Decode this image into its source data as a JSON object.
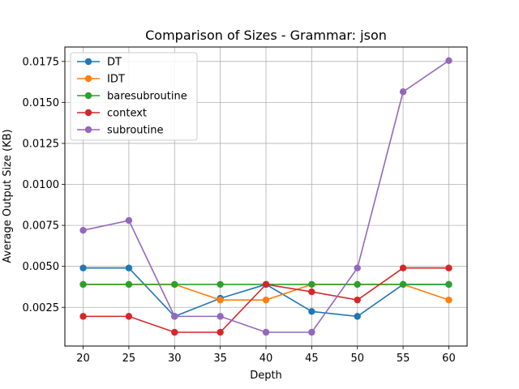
{
  "chart_data": {
    "type": "line",
    "title": "Comparison of Sizes - Grammar: json",
    "xlabel": "Depth",
    "ylabel": "Average Output Size (KB)",
    "x": [
      20,
      25,
      30,
      35,
      40,
      45,
      50,
      55,
      60
    ],
    "xlim": [
      18,
      62
    ],
    "ylim": [
      0.00014,
      0.01838
    ],
    "xticks": [
      "20",
      "25",
      "30",
      "35",
      "40",
      "45",
      "50",
      "55",
      "60"
    ],
    "yticks": [
      "0.0025",
      "0.0050",
      "0.0075",
      "0.0100",
      "0.0125",
      "0.0150",
      "0.0175"
    ],
    "ytick_values": [
      0.0025,
      0.005,
      0.0075,
      0.01,
      0.0125,
      0.015,
      0.0175
    ],
    "grid": true,
    "legend_position": "top-left",
    "series": [
      {
        "name": "DT",
        "color": "#1f77b4",
        "values": [
          0.0049,
          0.0049,
          0.00195,
          0.00305,
          0.0039,
          0.00225,
          0.00195,
          0.0039,
          0.0039
        ]
      },
      {
        "name": "IDT",
        "color": "#ff7f0e",
        "values": [
          0.0039,
          0.0039,
          0.0039,
          0.00295,
          0.00295,
          0.0039,
          0.0039,
          0.0039,
          0.00295
        ]
      },
      {
        "name": "baresubroutine",
        "color": "#2ca02c",
        "values": [
          0.0039,
          0.0039,
          0.0039,
          0.0039,
          0.0039,
          0.0039,
          0.0039,
          0.0039,
          0.0039
        ]
      },
      {
        "name": "context",
        "color": "#d62728",
        "values": [
          0.00195,
          0.00195,
          0.00098,
          0.00098,
          0.0039,
          0.00345,
          0.00295,
          0.0049,
          0.0049
        ]
      },
      {
        "name": "subroutine",
        "color": "#9467bd",
        "values": [
          0.0072,
          0.0078,
          0.00195,
          0.00195,
          0.00098,
          0.00098,
          0.0049,
          0.01565,
          0.01755
        ]
      }
    ]
  }
}
